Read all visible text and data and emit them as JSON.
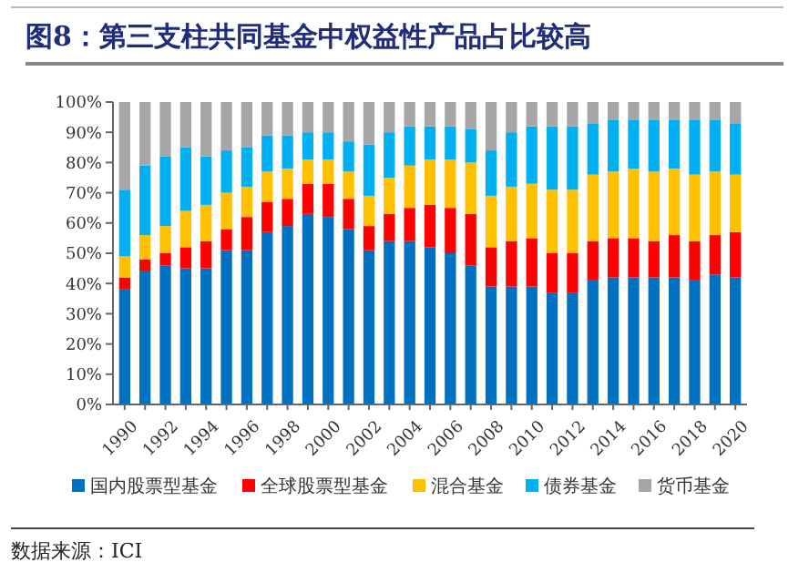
{
  "chart_data": {
    "type": "bar",
    "stacked": true,
    "title": "图8：第三支柱共同基金中权益性产品占比较高",
    "categories": [
      "1990",
      null,
      "1992",
      null,
      "1994",
      null,
      "1996",
      null,
      "1998",
      null,
      "2000",
      null,
      "2002",
      null,
      "2004",
      null,
      "2006",
      null,
      "2008",
      null,
      "2010",
      null,
      "2012",
      null,
      "2014",
      null,
      "2016",
      null,
      "2018",
      null,
      "2020"
    ],
    "series": [
      {
        "name": "国内股票型基金",
        "color": "#0070c0",
        "values": [
          38,
          44,
          46,
          45,
          45,
          51,
          51,
          57,
          59,
          63,
          62,
          58,
          51,
          54,
          54,
          52,
          50,
          46,
          39,
          39,
          39,
          37,
          37,
          41,
          42,
          42,
          42,
          42,
          41,
          43,
          42
        ]
      },
      {
        "name": "全球股票型基金",
        "color": "#ff0000",
        "values": [
          4,
          4,
          4,
          7,
          9,
          7,
          11,
          10,
          9,
          10,
          11,
          10,
          8,
          9,
          11,
          14,
          15,
          17,
          13,
          15,
          16,
          13,
          13,
          13,
          13,
          13,
          12,
          14,
          13,
          13,
          15
        ]
      },
      {
        "name": "混合基金",
        "color": "#ffc000",
        "values": [
          7,
          8,
          9,
          12,
          12,
          12,
          10,
          10,
          10,
          8,
          8,
          9,
          10,
          12,
          14,
          15,
          16,
          17,
          17,
          18,
          18,
          21,
          21,
          22,
          22,
          23,
          23,
          22,
          22,
          21,
          19
        ]
      },
      {
        "name": "债券基金",
        "color": "#00b0f0",
        "values": [
          22,
          23,
          23,
          21,
          16,
          14,
          13,
          12,
          11,
          9,
          9,
          10,
          17,
          15,
          13,
          11,
          11,
          11,
          15,
          18,
          19,
          21,
          21,
          17,
          17,
          16,
          17,
          16,
          18,
          17,
          17
        ]
      },
      {
        "name": "货币基金",
        "color": "#a6a6a6",
        "values": [
          29,
          21,
          18,
          15,
          18,
          16,
          15,
          11,
          11,
          10,
          10,
          13,
          14,
          10,
          8,
          8,
          8,
          9,
          16,
          10,
          8,
          8,
          8,
          7,
          6,
          6,
          6,
          6,
          6,
          6,
          7
        ]
      }
    ],
    "ylim": [
      0,
      100
    ],
    "yticks": [
      {
        "value": 0,
        "label": "0%"
      },
      {
        "value": 10,
        "label": "10%"
      },
      {
        "value": 20,
        "label": "20%"
      },
      {
        "value": 30,
        "label": "30%"
      },
      {
        "value": 40,
        "label": "40%"
      },
      {
        "value": 50,
        "label": "50%"
      },
      {
        "value": 60,
        "label": "60%"
      },
      {
        "value": 70,
        "label": "70%"
      },
      {
        "value": 80,
        "label": "80%"
      },
      {
        "value": 90,
        "label": "90%"
      },
      {
        "value": 100,
        "label": "100%"
      }
    ],
    "grid": false,
    "legend": "bottom",
    "annotations": [
      "数据来源：ICI"
    ]
  }
}
